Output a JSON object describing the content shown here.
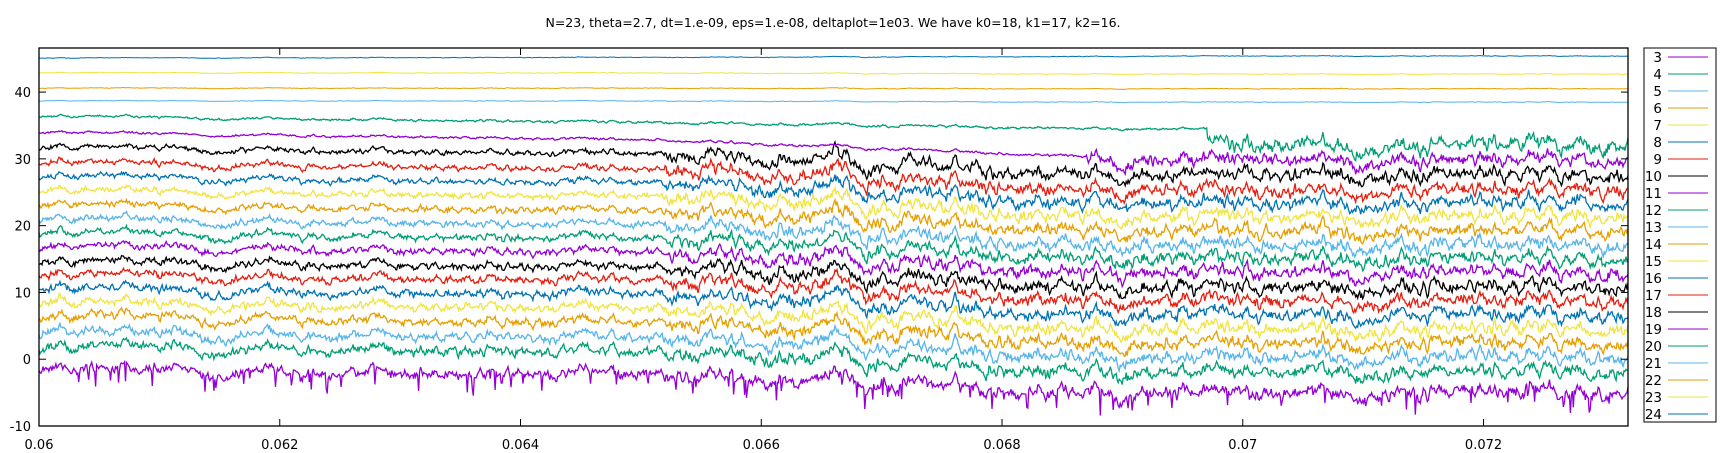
{
  "chart_data": {
    "type": "line",
    "title": "N=23, theta=2.7, dt=1.e-09, eps=1.e-08, deltaplot=1e03. We have k0=18, k1=17, k2=16.",
    "xlabel": "",
    "ylabel": "",
    "xlim": [
      0.06,
      0.0732
    ],
    "ylim": [
      -10,
      46.6
    ],
    "xticks": [
      0.06,
      0.062,
      0.064,
      0.066,
      0.068,
      0.07,
      0.072
    ],
    "xtick_labels": [
      "0.06",
      "0.062",
      "0.064",
      "0.066",
      "0.068",
      "0.07",
      "0.072"
    ],
    "yticks": [
      -10,
      0,
      10,
      20,
      30,
      40
    ],
    "ytick_labels": [
      "-10",
      "0",
      "10",
      "20",
      "30",
      "40"
    ],
    "grid": false,
    "legend_position": "outside-right",
    "series": [
      {
        "name": "3",
        "color": "#9400d3",
        "start": -1.5,
        "end": -5.0
      },
      {
        "name": "4",
        "color": "#009e73",
        "start": 1.9,
        "end": -1.9
      },
      {
        "name": "5",
        "color": "#56b4e9",
        "start": 4.1,
        "end": 0.3
      },
      {
        "name": "6",
        "color": "#e69f00",
        "start": 6.4,
        "end": 2.4
      },
      {
        "name": "7",
        "color": "#f0e442",
        "start": 8.5,
        "end": 4.5
      },
      {
        "name": "8",
        "color": "#0072b2",
        "start": 10.6,
        "end": 6.7
      },
      {
        "name": "9",
        "color": "#e51e10",
        "start": 12.7,
        "end": 8.7
      },
      {
        "name": "10",
        "color": "#000000",
        "start": 14.7,
        "end": 10.8
      },
      {
        "name": "11",
        "color": "#9400d3",
        "start": 16.9,
        "end": 13.0
      },
      {
        "name": "12",
        "color": "#009e73",
        "start": 19.0,
        "end": 15.1
      },
      {
        "name": "13",
        "color": "#56b4e9",
        "start": 21.0,
        "end": 17.1
      },
      {
        "name": "14",
        "color": "#e69f00",
        "start": 23.2,
        "end": 19.2
      },
      {
        "name": "15",
        "color": "#f0e442",
        "start": 25.3,
        "end": 21.4
      },
      {
        "name": "16",
        "color": "#0072b2",
        "start": 27.4,
        "end": 23.4
      },
      {
        "name": "17",
        "color": "#e51e10",
        "start": 29.5,
        "end": 25.3
      },
      {
        "name": "18",
        "color": "#000000",
        "start": 31.8,
        "end": 27.6
      },
      {
        "name": "19",
        "color": "#9400d3",
        "start": 34.0,
        "end": 29.8
      },
      {
        "name": "20",
        "color": "#009e73",
        "start": 36.4,
        "end": 32.1
      },
      {
        "name": "21",
        "color": "#56b4e9",
        "start": 38.7,
        "end": 38.5
      },
      {
        "name": "22",
        "color": "#e69f00",
        "start": 40.6,
        "end": 40.5
      },
      {
        "name": "23",
        "color": "#f0e442",
        "start": 42.9,
        "end": 42.7
      },
      {
        "name": "24",
        "color": "#0072b2",
        "start": 45.1,
        "end": 45.4
      }
    ]
  }
}
